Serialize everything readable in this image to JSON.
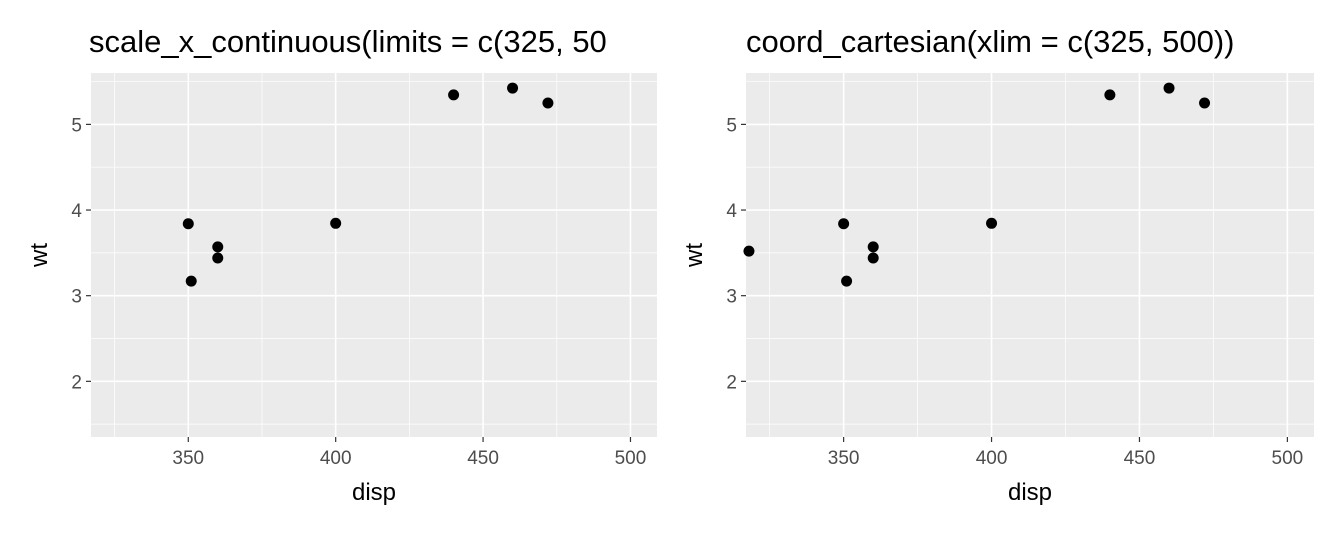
{
  "chart_data": [
    {
      "type": "scatter",
      "title": "scale_x_continuous(limits = c(325, 50",
      "xlabel": "disp",
      "ylabel": "wt",
      "xlim": [
        317,
        509
      ],
      "ylim": [
        1.35,
        5.6
      ],
      "xticks": [
        350,
        400,
        450,
        500
      ],
      "yticks": [
        2,
        3,
        4,
        5
      ],
      "grid": true,
      "points": [
        {
          "x": 350,
          "y": 3.84
        },
        {
          "x": 351,
          "y": 3.17
        },
        {
          "x": 360,
          "y": 3.57
        },
        {
          "x": 360,
          "y": 3.44
        },
        {
          "x": 400,
          "y": 3.845
        },
        {
          "x": 440,
          "y": 5.345
        },
        {
          "x": 460,
          "y": 5.424
        },
        {
          "x": 472,
          "y": 5.25
        }
      ]
    },
    {
      "type": "scatter",
      "title": "coord_cartesian(xlim = c(325, 500))",
      "xlabel": "disp",
      "ylabel": "wt",
      "xlim": [
        317,
        509
      ],
      "ylim": [
        1.35,
        5.6
      ],
      "xticks": [
        350,
        400,
        450,
        500
      ],
      "yticks": [
        2,
        3,
        4,
        5
      ],
      "grid": true,
      "points": [
        {
          "x": 318,
          "y": 3.52
        },
        {
          "x": 350,
          "y": 3.84
        },
        {
          "x": 351,
          "y": 3.17
        },
        {
          "x": 360,
          "y": 3.57
        },
        {
          "x": 360,
          "y": 3.44
        },
        {
          "x": 400,
          "y": 3.845
        },
        {
          "x": 440,
          "y": 5.345
        },
        {
          "x": 460,
          "y": 5.424
        },
        {
          "x": 472,
          "y": 5.25
        }
      ]
    }
  ],
  "colors": {
    "panel_background": "#ebebeb",
    "grid_major": "#ffffff",
    "point": "#000000",
    "tick_text": "#4d4d4d"
  }
}
